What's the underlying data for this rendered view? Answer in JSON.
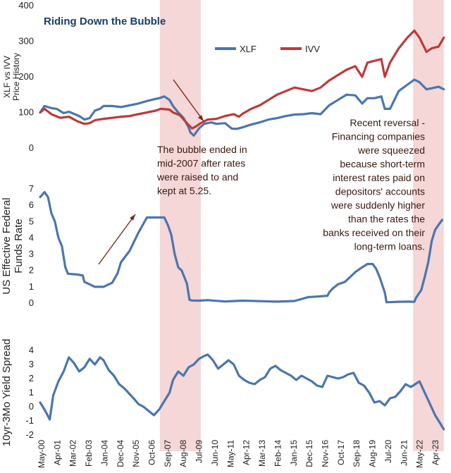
{
  "colors": {
    "xlf": "#4a76ae",
    "ivv": "#bb3b3b",
    "fed": "#4a76ae",
    "spread": "#4a76ae",
    "shade": "#f2c9c9",
    "title": "#1f3d66",
    "arrow": "#7a2a1f"
  },
  "x_tick_labels": [
    "May-00",
    "Apr-01",
    "Mar-02",
    "Feb-03",
    "Jan-04",
    "Dec-04",
    "Nov-05",
    "Oct-06",
    "Sep-07",
    "Aug-08",
    "Jul-09",
    "Jun-10",
    "May-11",
    "Apr-12",
    "Mar-13",
    "Feb-14",
    "Jan-15",
    "Dec-15",
    "Nov-16",
    "Oct-17",
    "Sep-18",
    "Aug-19",
    "Jul-20",
    "Jun-21",
    "May-22",
    "Apr-23"
  ],
  "shaded_periods": [
    {
      "start": 2007.25,
      "end": 2009.6
    },
    {
      "start": 2021.83,
      "end": 2023.6
    }
  ],
  "annotations": {
    "bubble_text": [
      "The bubble ended in",
      "mid-2007 after rates",
      "were raised to and",
      "kept at 5.25."
    ],
    "reversal_text": [
      "Recent reversal -",
      "Financing companies",
      "were squeezed",
      "because short-term",
      "interest rates paid on",
      "depositors' accounts",
      "were suddenly higher",
      "than the rates the",
      "banks received on their",
      "long-term loans."
    ]
  },
  "chart_data": [
    {
      "type": "line",
      "title": "Riding Down the Bubble",
      "ylabel": "XLF vs IVV Price History",
      "ylim": [
        0,
        400
      ],
      "yticks": [
        0,
        100,
        200,
        300,
        400
      ],
      "legend_position": "top-center",
      "series": [
        {
          "name": "XLF",
          "x": [
            2000.35,
            2000.6,
            2001.0,
            2001.3,
            2001.7,
            2002.0,
            2002.3,
            2002.6,
            2002.9,
            2003.2,
            2003.5,
            2003.8,
            2004.0,
            2004.5,
            2005.0,
            2005.5,
            2006.0,
            2006.5,
            2007.0,
            2007.2,
            2007.5,
            2007.8,
            2008.0,
            2008.3,
            2008.6,
            2008.9,
            2009.0,
            2009.2,
            2009.5,
            2009.8,
            2010.2,
            2010.5,
            2011.0,
            2011.4,
            2011.7,
            2012.0,
            2012.5,
            2013.0,
            2013.5,
            2014.0,
            2014.5,
            2015.0,
            2015.5,
            2016.0,
            2016.5,
            2017.0,
            2017.5,
            2018.0,
            2018.5,
            2018.9,
            2019.2,
            2019.6,
            2020.0,
            2020.2,
            2020.5,
            2021.0,
            2021.5,
            2021.9,
            2022.2,
            2022.6,
            2022.9,
            2023.3,
            2023.6
          ],
          "values": [
            100,
            118,
            112,
            110,
            98,
            102,
            96,
            90,
            80,
            84,
            105,
            110,
            118,
            118,
            115,
            120,
            125,
            132,
            138,
            140,
            145,
            135,
            118,
            100,
            85,
            58,
            44,
            35,
            55,
            68,
            72,
            68,
            70,
            54,
            54,
            58,
            66,
            72,
            80,
            84,
            90,
            94,
            95,
            98,
            95,
            120,
            135,
            150,
            148,
            125,
            140,
            140,
            145,
            110,
            110,
            160,
            178,
            192,
            185,
            165,
            168,
            172,
            165
          ]
        },
        {
          "name": "IVV",
          "x": [
            2000.35,
            2000.6,
            2001.0,
            2001.5,
            2002.0,
            2002.5,
            2002.9,
            2003.2,
            2003.5,
            2004.0,
            2004.5,
            2005.0,
            2005.5,
            2006.0,
            2006.5,
            2007.0,
            2007.3,
            2007.8,
            2008.0,
            2008.4,
            2008.8,
            2009.1,
            2009.3,
            2009.6,
            2010.0,
            2010.5,
            2011.0,
            2011.5,
            2011.8,
            2012.0,
            2012.5,
            2013.0,
            2013.5,
            2014.0,
            2014.5,
            2015.0,
            2015.5,
            2016.0,
            2016.5,
            2017.0,
            2017.5,
            2018.0,
            2018.5,
            2018.9,
            2019.2,
            2019.6,
            2020.0,
            2020.2,
            2020.5,
            2021.0,
            2021.5,
            2021.9,
            2022.2,
            2022.6,
            2022.9,
            2023.3,
            2023.6
          ],
          "values": [
            100,
            110,
            95,
            85,
            88,
            75,
            68,
            70,
            78,
            82,
            85,
            88,
            90,
            95,
            100,
            105,
            110,
            108,
            100,
            92,
            70,
            55,
            60,
            70,
            80,
            82,
            90,
            95,
            88,
            96,
            110,
            120,
            135,
            150,
            160,
            170,
            165,
            160,
            170,
            190,
            205,
            220,
            230,
            200,
            240,
            245,
            250,
            200,
            240,
            280,
            310,
            330,
            310,
            270,
            280,
            285,
            310
          ]
        }
      ]
    },
    {
      "type": "line",
      "ylabel": "US Effective Federal Funds Rate",
      "ylim": [
        0,
        7
      ],
      "yticks": [
        0,
        1,
        2,
        3,
        4,
        5,
        6,
        7
      ],
      "series": [
        {
          "x": [
            2000.35,
            2000.6,
            2000.8,
            2001.0,
            2001.2,
            2001.4,
            2001.6,
            2001.8,
            2001.95,
            2002.5,
            2002.8,
            2002.9,
            2003.0,
            2003.5,
            2003.6,
            2004.0,
            2004.5,
            2004.8,
            2005.0,
            2005.5,
            2006.0,
            2006.5,
            2007.0,
            2007.2,
            2007.5,
            2007.7,
            2007.9,
            2008.1,
            2008.3,
            2008.5,
            2008.8,
            2008.95,
            2009.1,
            2009.5,
            2010.0,
            2011.0,
            2012.0,
            2013.0,
            2014.0,
            2015.0,
            2015.8,
            2016.0,
            2016.9,
            2017.0,
            2017.2,
            2017.5,
            2017.9,
            2018.2,
            2018.5,
            2018.9,
            2019.2,
            2019.5,
            2019.7,
            2019.9,
            2020.2,
            2020.3,
            2021.0,
            2021.5,
            2021.9,
            2022.0,
            2022.3,
            2022.5,
            2022.7,
            2022.9,
            2023.1,
            2023.3,
            2023.5
          ],
          "values": [
            6.5,
            6.8,
            6.5,
            5.5,
            5.0,
            4.0,
            3.5,
            2.2,
            1.8,
            1.75,
            1.7,
            1.3,
            1.25,
            1.0,
            1.0,
            1.0,
            1.25,
            1.8,
            2.5,
            3.2,
            4.3,
            5.25,
            5.25,
            5.25,
            5.25,
            4.8,
            4.2,
            3.0,
            2.2,
            2.0,
            1.2,
            0.2,
            0.16,
            0.15,
            0.18,
            0.1,
            0.15,
            0.12,
            0.09,
            0.13,
            0.37,
            0.38,
            0.45,
            0.66,
            0.9,
            1.15,
            1.3,
            1.6,
            1.9,
            2.2,
            2.4,
            2.4,
            2.1,
            1.6,
            0.65,
            0.05,
            0.08,
            0.09,
            0.08,
            0.33,
            0.8,
            1.6,
            2.5,
            3.8,
            4.5,
            4.8,
            5.1
          ]
        }
      ]
    },
    {
      "type": "line",
      "ylabel": "10yr-3Mo Yield Spread",
      "ylim": [
        -2,
        4
      ],
      "yticks": [
        -2,
        -1,
        0,
        1,
        2,
        3,
        4
      ],
      "series": [
        {
          "x": [
            2000.35,
            2000.6,
            2000.9,
            2001.1,
            2001.4,
            2001.7,
            2002.0,
            2002.3,
            2002.6,
            2002.9,
            2003.2,
            2003.5,
            2003.8,
            2004.0,
            2004.3,
            2004.6,
            2004.9,
            2005.2,
            2005.5,
            2005.8,
            2006.0,
            2006.3,
            2006.6,
            2006.9,
            2007.2,
            2007.5,
            2007.8,
            2008.0,
            2008.3,
            2008.6,
            2008.9,
            2009.2,
            2009.5,
            2009.8,
            2010.0,
            2010.3,
            2010.6,
            2010.9,
            2011.2,
            2011.5,
            2011.8,
            2012.1,
            2012.4,
            2012.7,
            2013.0,
            2013.3,
            2013.6,
            2013.9,
            2014.2,
            2014.5,
            2014.8,
            2015.1,
            2015.4,
            2015.7,
            2016.0,
            2016.3,
            2016.6,
            2016.9,
            2017.2,
            2017.5,
            2017.8,
            2018.1,
            2018.4,
            2018.7,
            2019.0,
            2019.3,
            2019.6,
            2019.9,
            2020.2,
            2020.5,
            2020.8,
            2021.1,
            2021.4,
            2021.7,
            2021.95,
            2022.2,
            2022.5,
            2022.8,
            2023.1,
            2023.4,
            2023.6
          ],
          "values": [
            0.3,
            -0.2,
            -0.9,
            0.8,
            1.8,
            2.5,
            3.5,
            3.1,
            2.5,
            2.8,
            3.4,
            3.0,
            3.5,
            3.3,
            2.6,
            2.2,
            1.6,
            1.3,
            0.9,
            0.5,
            0.2,
            0.0,
            -0.3,
            -0.6,
            -0.2,
            0.4,
            1.0,
            1.9,
            2.5,
            2.2,
            2.8,
            3.0,
            3.4,
            3.6,
            3.7,
            3.3,
            2.7,
            3.0,
            3.3,
            3.0,
            2.2,
            1.9,
            1.7,
            1.6,
            1.9,
            2.1,
            2.7,
            2.9,
            2.6,
            2.4,
            2.2,
            1.9,
            2.2,
            2.0,
            1.8,
            1.5,
            1.4,
            2.2,
            2.1,
            2.0,
            2.1,
            2.3,
            2.4,
            1.7,
            1.5,
            1.0,
            0.3,
            0.4,
            0.1,
            0.6,
            0.7,
            1.1,
            1.6,
            1.4,
            1.6,
            1.8,
            1.0,
            0.2,
            -0.6,
            -1.2,
            -1.6
          ]
        }
      ]
    }
  ]
}
